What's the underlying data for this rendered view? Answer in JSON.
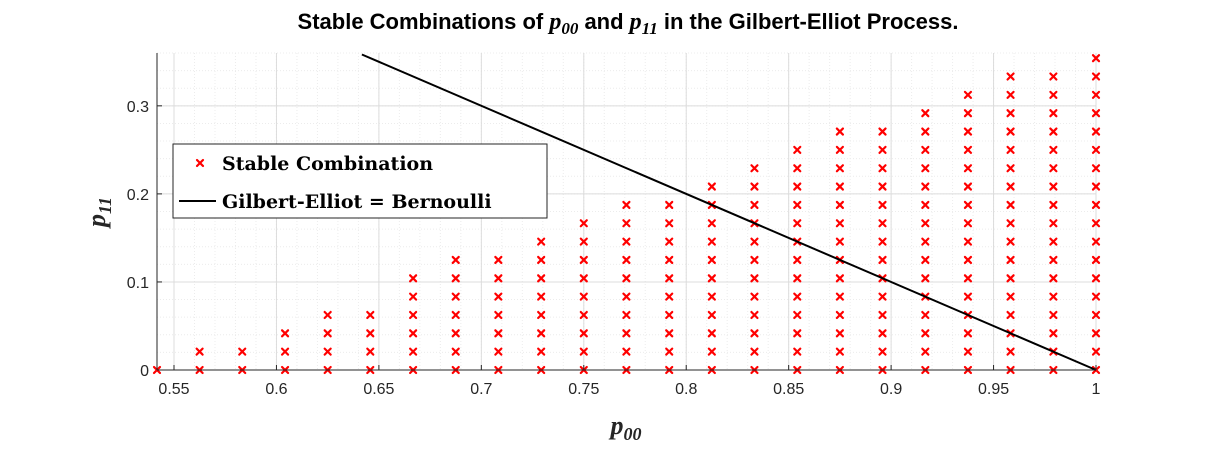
{
  "chart_data": {
    "type": "scatter",
    "title": {
      "prefix": "Stable Combinations of ",
      "sym1_base": "p",
      "sym1_sub": "00",
      "middle": " and ",
      "sym2_base": "p",
      "sym2_sub": "11",
      "suffix": " in the Gilbert-Elliot Process."
    },
    "xlabel": {
      "base": "p",
      "sub": "00"
    },
    "ylabel": {
      "base": "p",
      "sub": "11"
    },
    "xlim": [
      0.5417,
      1.0
    ],
    "ylim": [
      0,
      0.36
    ],
    "xticks": [
      0.55,
      0.6,
      0.65,
      0.7,
      0.75,
      0.8,
      0.85,
      0.9,
      0.95,
      1
    ],
    "xtick_labels": [
      "0.55",
      "0.6",
      "0.65",
      "0.7",
      "0.75",
      "0.8",
      "0.85",
      "0.9",
      "0.95",
      "1"
    ],
    "yticks": [
      0,
      0.1,
      0.2,
      0.3
    ],
    "ytick_labels": [
      "0",
      "0.1",
      "0.2",
      "0.3"
    ],
    "grid": true,
    "minor_grid": true,
    "legend_position": "left-middle",
    "series": [
      {
        "name": "Stable Combination",
        "marker": "x",
        "color": "#ff0000",
        "x_values": [
          0.5417,
          0.5625,
          0.5833,
          0.6042,
          0.625,
          0.6458,
          0.6667,
          0.6875,
          0.7083,
          0.7292,
          0.75,
          0.7708,
          0.7917,
          0.8125,
          0.8333,
          0.8542,
          0.875,
          0.8958,
          0.9167,
          0.9375,
          0.9583,
          0.9792,
          1.0
        ],
        "y_step": 0.02083,
        "max_y_per_x": [
          0,
          0.02083,
          0.02083,
          0.04167,
          0.0625,
          0.0625,
          0.10417,
          0.125,
          0.125,
          0.14583,
          0.16667,
          0.1875,
          0.1875,
          0.20833,
          0.22917,
          0.25,
          0.27083,
          0.27083,
          0.29167,
          0.3125,
          0.33333,
          0.33333,
          0.35417
        ]
      },
      {
        "name": "Gilbert-Elliot = Bernoulli",
        "type": "line",
        "color": "#000000",
        "x": [
          0.6417,
          1.0
        ],
        "y": [
          0.3583,
          0
        ]
      }
    ]
  }
}
